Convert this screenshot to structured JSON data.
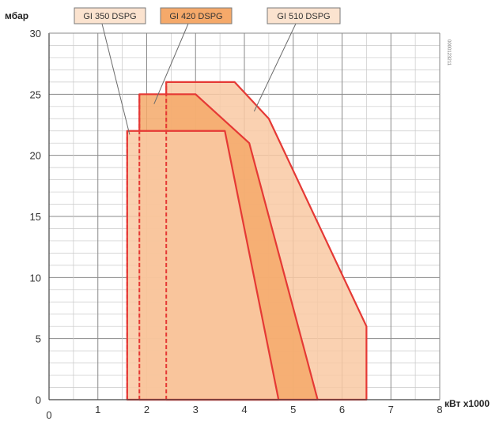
{
  "chart_data": {
    "type": "area",
    "xlabel": "кВт x1000",
    "ylabel": "мбар",
    "xlim": [
      0,
      8
    ],
    "ylim": [
      0,
      30
    ],
    "x_ticks": [
      "0",
      "1",
      "2",
      "3",
      "4",
      "5",
      "6",
      "7",
      "8"
    ],
    "y_ticks": [
      "0",
      "5",
      "10",
      "15",
      "20",
      "25",
      "30"
    ],
    "grid": true,
    "side_code": "0000123211",
    "series": [
      {
        "name": "GI 510 DSPG",
        "color": "#f9c9a3",
        "outline": "#e53935",
        "points": [
          [
            2.4,
            0
          ],
          [
            2.4,
            26
          ],
          [
            3.8,
            26
          ],
          [
            4.5,
            23
          ],
          [
            6.5,
            6
          ],
          [
            6.5,
            0
          ]
        ],
        "min_line_x": 2.4
      },
      {
        "name": "GI 420 DSPG",
        "color": "#f5a96a",
        "outline": "#e53935",
        "points": [
          [
            1.85,
            0
          ],
          [
            1.85,
            25
          ],
          [
            3.0,
            25
          ],
          [
            4.1,
            21
          ],
          [
            5.5,
            0
          ]
        ],
        "min_line_x": 1.85
      },
      {
        "name": "GI 350 DSPG",
        "color": "#f9c9a3",
        "outline": "#e53935",
        "points": [
          [
            1.6,
            0
          ],
          [
            1.6,
            22
          ],
          [
            3.6,
            22
          ],
          [
            4.7,
            0
          ]
        ],
        "min_line_x": 1.6
      }
    ],
    "legend": [
      {
        "label": "GI 350 DSPG",
        "fill": "#fbe3cf",
        "pointer": [
          1.65,
          21.7
        ]
      },
      {
        "label": "GI 420 DSPG",
        "fill": "#f5a96a",
        "pointer": [
          2.15,
          24.2
        ]
      },
      {
        "label": "GI 510 DSPG",
        "fill": "#fbe3cf",
        "pointer": [
          4.2,
          23.6
        ]
      }
    ]
  }
}
